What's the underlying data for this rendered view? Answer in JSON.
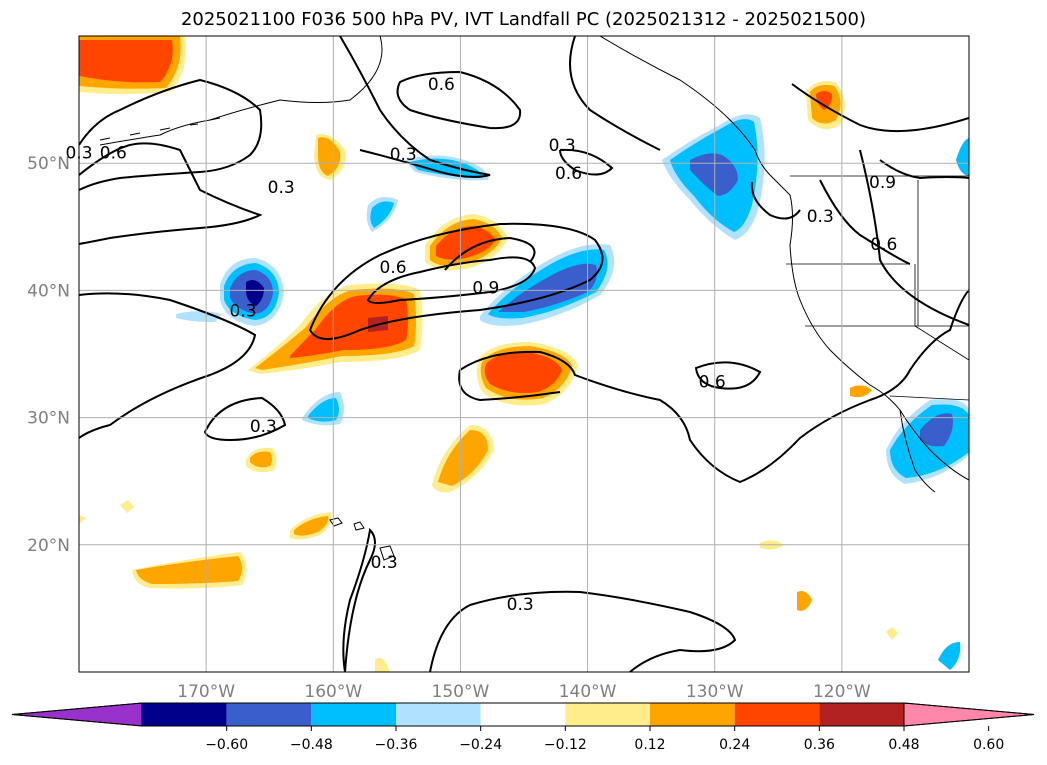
{
  "chart_data": {
    "type": "heatmap",
    "title": "2025021100 F036 500 hPa PV, IVT Landfall PC (2025021312 - 2025021500)",
    "map": {
      "lon_range": [
        -180,
        -110
      ],
      "lat_range": [
        10,
        60
      ],
      "lon_ticks": [
        -170,
        -160,
        -150,
        -140,
        -130,
        -120
      ],
      "lon_tick_labels": [
        "170°W",
        "160°W",
        "150°W",
        "140°W",
        "130°W",
        "120°W"
      ],
      "lat_ticks": [
        20,
        30,
        40,
        50
      ],
      "lat_tick_labels": [
        "20°N",
        "30°N",
        "40°N",
        "50°N"
      ],
      "grid": true,
      "coastlines": true
    },
    "colorbar": {
      "orientation": "horizontal",
      "extend": "both",
      "tick_labels": [
        "−0.60",
        "−0.48",
        "−0.36",
        "−0.24",
        "−0.12",
        "0.12",
        "0.24",
        "0.36",
        "0.48",
        "0.60"
      ],
      "colors": [
        "#9932CC",
        "#00008B",
        "#3A5FCD",
        "#00BFFF",
        "#B0E2FF",
        "#FFFFFF",
        "#FFEC8B",
        "#FFA500",
        "#FF4500",
        "#B22222",
        "#FF88AA"
      ]
    },
    "contour_levels": [
      0.3,
      0.6,
      0.9
    ],
    "contour_labels": [
      {
        "text": "0.6",
        "lon": -151.5,
        "lat": 56.0
      },
      {
        "text": "0.3",
        "lon": -142.0,
        "lat": 51.2
      },
      {
        "text": "0.3",
        "lon": -154.5,
        "lat": 50.5
      },
      {
        "text": "0.6",
        "lon": -141.5,
        "lat": 49.0
      },
      {
        "text": "0.3",
        "lon": -180.0,
        "lat": 50.6
      },
      {
        "text": "0.6",
        "lon": -177.3,
        "lat": 50.6
      },
      {
        "text": "0.3",
        "lon": -164.1,
        "lat": 47.9
      },
      {
        "text": "0.6",
        "lon": -155.3,
        "lat": 41.6
      },
      {
        "text": "0.9",
        "lon": -148.0,
        "lat": 40.0
      },
      {
        "text": "0.3",
        "lon": -167.1,
        "lat": 38.2
      },
      {
        "text": "0.6",
        "lon": -130.2,
        "lat": 32.6
      },
      {
        "text": "0.3",
        "lon": -165.5,
        "lat": 29.1
      },
      {
        "text": "0.3",
        "lon": -156.0,
        "lat": 18.4
      },
      {
        "text": "0.3",
        "lon": -145.3,
        "lat": 15.1
      },
      {
        "text": "0.3",
        "lon": -121.7,
        "lat": 45.6
      },
      {
        "text": "0.9",
        "lon": -116.8,
        "lat": 48.3
      },
      {
        "text": "0.6",
        "lon": -116.7,
        "lat": 43.4
      }
    ],
    "shaded_features": [
      {
        "region": "far NW corner",
        "lon": -177,
        "lat": 57,
        "value": 0.4
      },
      {
        "region": "Gulf of Alaska west (50N)",
        "lon": -160,
        "lat": 50.5,
        "value": 0.25
      },
      {
        "region": "blue strip 50N",
        "lon": -150,
        "lat": 49.8,
        "value": -0.25
      },
      {
        "region": "small blue 46N",
        "lon": -157,
        "lat": 45.5,
        "value": -0.25
      },
      {
        "region": "blob 40N 166W",
        "lon": -166,
        "lat": 40.0,
        "value": -0.5
      },
      {
        "region": "large positive 40N",
        "lon": -156,
        "lat": 38.5,
        "value": 0.44
      },
      {
        "region": "positive 43N 150W",
        "lon": -149,
        "lat": 43.0,
        "value": 0.4
      },
      {
        "region": "negative 40N 143W",
        "lon": -142,
        "lat": 40.5,
        "value": -0.4
      },
      {
        "region": "positive 33N 147W",
        "lon": -146,
        "lat": 33.0,
        "value": 0.4
      },
      {
        "region": "small blue 31N",
        "lon": -160,
        "lat": 30.5,
        "value": -0.3
      },
      {
        "region": "orange 27N 149W",
        "lon": -150,
        "lat": 27.0,
        "value": 0.28
      },
      {
        "region": "yellow 27N 165W",
        "lon": -165,
        "lat": 27.0,
        "value": 0.25
      },
      {
        "region": "orange 21N 161W",
        "lon": -161,
        "lat": 21.5,
        "value": 0.28
      },
      {
        "region": "orange 18N 170W",
        "lon": -171,
        "lat": 18.0,
        "value": 0.28
      },
      {
        "region": "Vancouver Island/BC negative",
        "lon": -131,
        "lat": 48.5,
        "value": -0.45
      },
      {
        "region": "orange 55N 122W",
        "lon": -122,
        "lat": 55.0,
        "value": 0.4
      },
      {
        "region": "Baja negative",
        "lon": -113,
        "lat": 28.5,
        "value": -0.45
      }
    ]
  }
}
